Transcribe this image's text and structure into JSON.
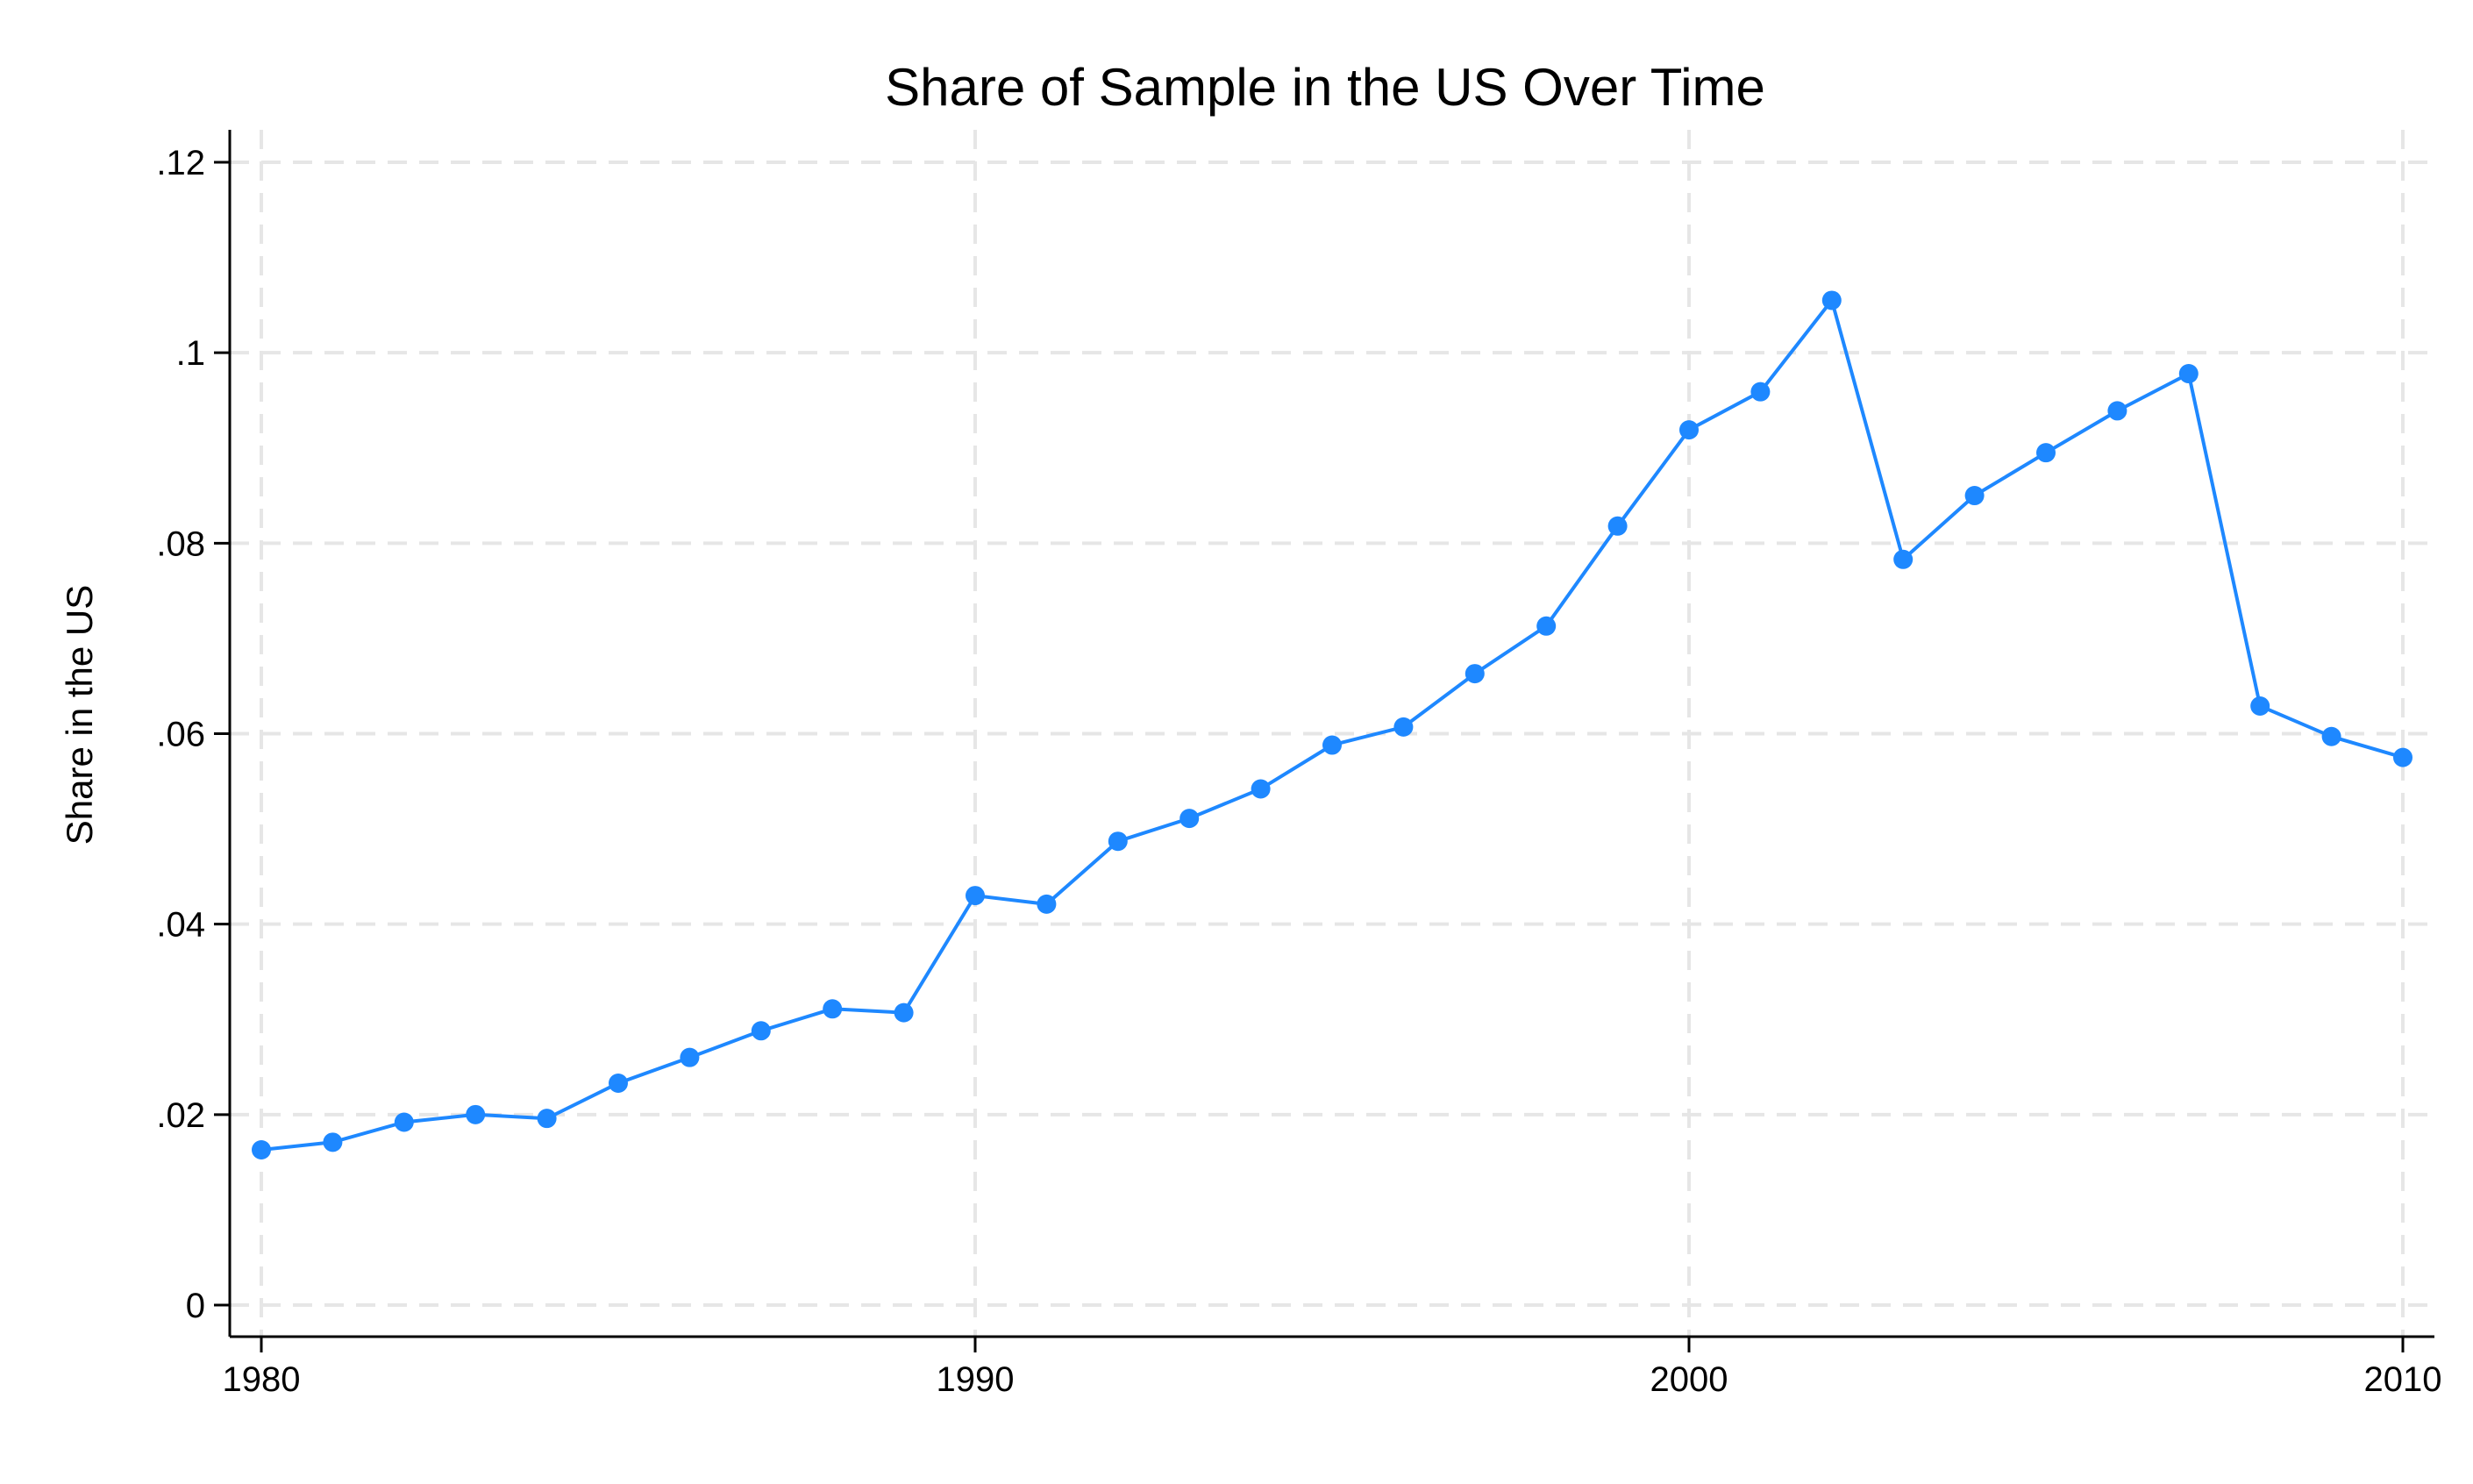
{
  "chart_data": {
    "type": "line",
    "title": "Share of Sample in the US Over Time",
    "xlabel": "",
    "ylabel": "Share in the US",
    "xlim": [
      1980,
      2010
    ],
    "ylim": [
      0,
      0.12
    ],
    "grid": true,
    "legend": "none",
    "x_ticks": [
      {
        "value": 1980,
        "label": "1980"
      },
      {
        "value": 1990,
        "label": "1990"
      },
      {
        "value": 2000,
        "label": "2000"
      },
      {
        "value": 2010,
        "label": "2010"
      }
    ],
    "y_ticks": [
      {
        "value": 0,
        "label": "0"
      },
      {
        "value": 0.02,
        "label": ".02"
      },
      {
        "value": 0.04,
        "label": ".04"
      },
      {
        "value": 0.06,
        "label": ".06"
      },
      {
        "value": 0.08,
        "label": ".08"
      },
      {
        "value": 0.1,
        "label": ".1"
      },
      {
        "value": 0.12,
        "label": ".12"
      }
    ],
    "series": [
      {
        "color": "#1e88ff",
        "x": [
          1980,
          1981,
          1982,
          1983,
          1984,
          1985,
          1986,
          1987,
          1988,
          1989,
          1990,
          1991,
          1992,
          1993,
          1994,
          1995,
          1996,
          1997,
          1998,
          1999,
          2000,
          2001,
          2002,
          2003,
          2004,
          2005,
          2006,
          2007,
          2008,
          2009,
          2010
        ],
        "y": [
          0.0163,
          0.0171,
          0.0192,
          0.02,
          0.0196,
          0.0233,
          0.026,
          0.0288,
          0.0311,
          0.0307,
          0.043,
          0.0421,
          0.0487,
          0.0511,
          0.0542,
          0.0588,
          0.0607,
          0.0663,
          0.0713,
          0.0818,
          0.0919,
          0.0959,
          0.1055,
          0.0783,
          0.085,
          0.0895,
          0.0939,
          0.0978,
          0.0629,
          0.0597,
          0.0575
        ]
      }
    ]
  }
}
